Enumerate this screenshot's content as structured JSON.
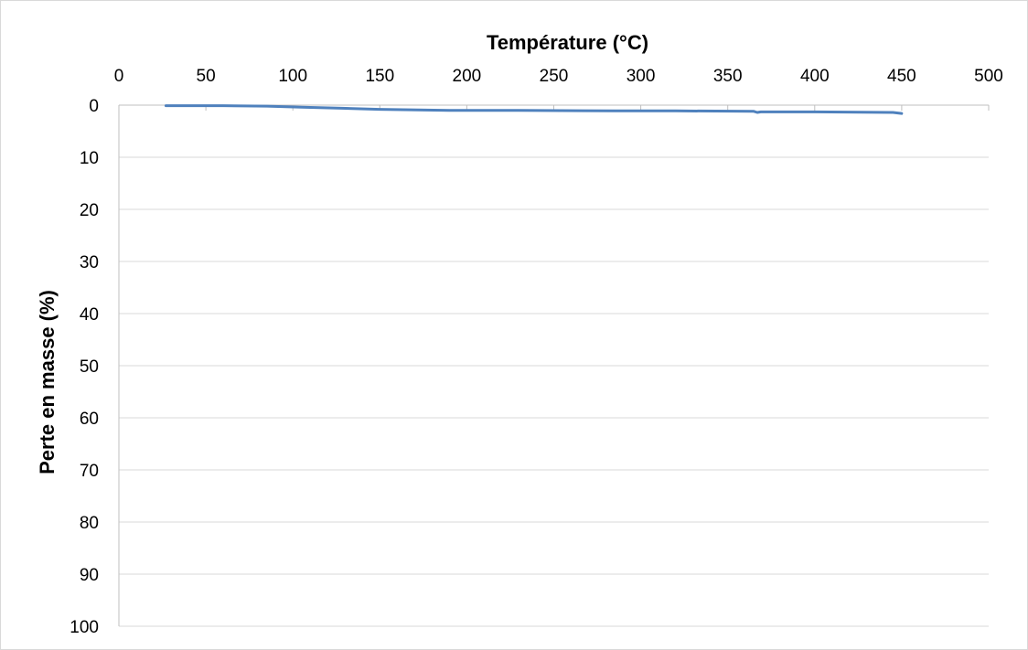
{
  "chart_data": {
    "type": "line",
    "xlabel": "Température (°C)",
    "ylabel": "Perte en masse (%)",
    "xlim": [
      0,
      500
    ],
    "ylim": [
      0,
      100
    ],
    "x_axis_position": "top",
    "y_axis_reversed": true,
    "grid": "horizontal",
    "x_ticks": [
      "0",
      "50",
      "100",
      "150",
      "200",
      "250",
      "300",
      "350",
      "400",
      "450",
      "500"
    ],
    "y_ticks": [
      "0",
      "10",
      "20",
      "30",
      "40",
      "50",
      "60",
      "70",
      "80",
      "90",
      "100"
    ],
    "colors": {
      "line": "#4f81bd",
      "grid": "#d9d9d9",
      "axis": "#bfbfbf"
    },
    "series": [
      {
        "x": [
          27,
          60,
          85,
          105,
          128,
          150,
          190,
          230,
          285,
          320,
          365,
          367,
          369,
          400,
          445,
          450
        ],
        "y": [
          0.1,
          0.1,
          0.2,
          0.4,
          0.6,
          0.8,
          1.0,
          1.0,
          1.1,
          1.1,
          1.2,
          1.4,
          1.3,
          1.3,
          1.4,
          1.6
        ]
      }
    ]
  }
}
